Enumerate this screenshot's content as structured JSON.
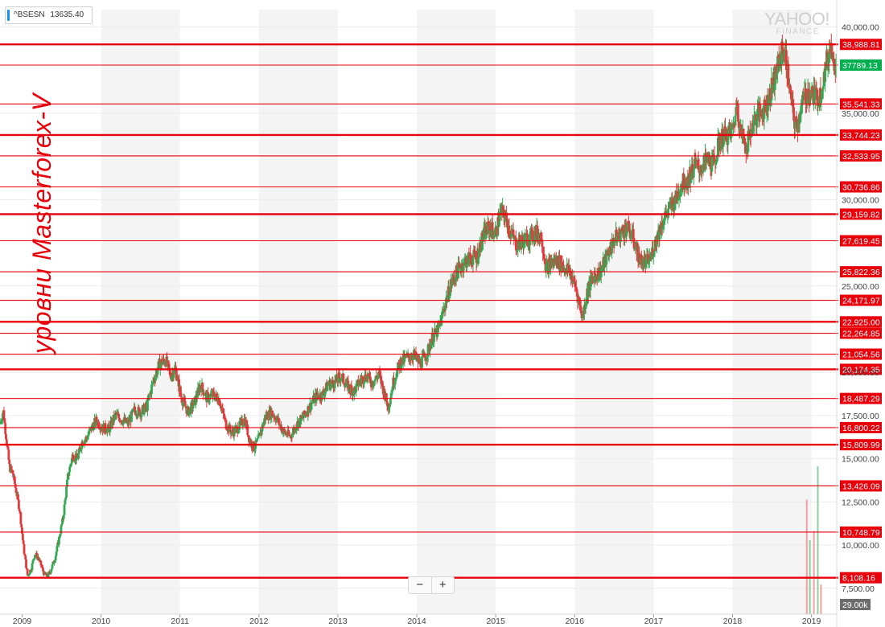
{
  "ticker": {
    "symbol": "^BSESN",
    "value": "13635.40",
    "accent": "#188fff"
  },
  "brand": {
    "name": "YAHOO!",
    "sub": "FINANCE"
  },
  "watermark": {
    "text": "уровни Masterforex-V",
    "color": "#e8000b"
  },
  "zoom": {
    "minus": "−",
    "plus": "+"
  },
  "chart_data": {
    "type": "candlestick",
    "title": "",
    "xlabel": "",
    "ylabel": "",
    "ylim": [
      6000,
      41000
    ],
    "xlim": [
      2008.72,
      2019.32
    ],
    "grid": true,
    "year_bands": true,
    "x_ticks": [
      "2009",
      "2010",
      "2011",
      "2012",
      "2013",
      "2014",
      "2015",
      "2016",
      "2017",
      "2018",
      "2019"
    ],
    "y_ticks": [
      {
        "value": 40000,
        "label": "40,000.00"
      },
      {
        "value": 35000,
        "label": "35,000.00"
      },
      {
        "value": 30000,
        "label": "30,000.00"
      },
      {
        "value": 25000,
        "label": "25,000.00"
      },
      {
        "value": 20000,
        "label": "20,000.00"
      },
      {
        "value": 17500,
        "label": "17,500.00"
      },
      {
        "value": 15000,
        "label": "15,000.00"
      },
      {
        "value": 12500,
        "label": "12,500.00"
      },
      {
        "value": 10000,
        "label": "10,000.00"
      },
      {
        "value": 7500,
        "label": "7,500.00"
      }
    ],
    "price_path": [
      [
        2008.72,
        17000
      ],
      [
        2008.76,
        17800
      ],
      [
        2008.8,
        16200
      ],
      [
        2008.84,
        14500
      ],
      [
        2008.88,
        14200
      ],
      [
        2008.93,
        13000
      ],
      [
        2008.97,
        12000
      ],
      [
        2009.02,
        9800
      ],
      [
        2009.07,
        8200
      ],
      [
        2009.12,
        8700
      ],
      [
        2009.16,
        9500
      ],
      [
        2009.2,
        9300
      ],
      [
        2009.25,
        8700
      ],
      [
        2009.28,
        8300
      ],
      [
        2009.32,
        8200
      ],
      [
        2009.36,
        8500
      ],
      [
        2009.42,
        9300
      ],
      [
        2009.46,
        10200
      ],
      [
        2009.52,
        11600
      ],
      [
        2009.58,
        14000
      ],
      [
        2009.64,
        15200
      ],
      [
        2009.7,
        15000
      ],
      [
        2009.76,
        16000
      ],
      [
        2009.82,
        16200
      ],
      [
        2009.88,
        16800
      ],
      [
        2009.94,
        17200
      ],
      [
        2010.02,
        16800
      ],
      [
        2010.1,
        16700
      ],
      [
        2010.18,
        17500
      ],
      [
        2010.26,
        17300
      ],
      [
        2010.34,
        17000
      ],
      [
        2010.42,
        17800
      ],
      [
        2010.5,
        17700
      ],
      [
        2010.58,
        18000
      ],
      [
        2010.66,
        19500
      ],
      [
        2010.74,
        20500
      ],
      [
        2010.82,
        20700
      ],
      [
        2010.88,
        19800
      ],
      [
        2010.94,
        20200
      ],
      [
        2011.02,
        18500
      ],
      [
        2011.1,
        17700
      ],
      [
        2011.18,
        18200
      ],
      [
        2011.26,
        19300
      ],
      [
        2011.34,
        18500
      ],
      [
        2011.42,
        18700
      ],
      [
        2011.5,
        18400
      ],
      [
        2011.58,
        17000
      ],
      [
        2011.66,
        16500
      ],
      [
        2011.74,
        16800
      ],
      [
        2011.82,
        17300
      ],
      [
        2011.88,
        16100
      ],
      [
        2011.94,
        15600
      ],
      [
        2012.0,
        16200
      ],
      [
        2012.08,
        17400
      ],
      [
        2012.16,
        17700
      ],
      [
        2012.24,
        17200
      ],
      [
        2012.32,
        16500
      ],
      [
        2012.4,
        16300
      ],
      [
        2012.48,
        17000
      ],
      [
        2012.56,
        17400
      ],
      [
        2012.64,
        18000
      ],
      [
        2012.72,
        18600
      ],
      [
        2012.8,
        18700
      ],
      [
        2012.88,
        19300
      ],
      [
        2012.96,
        19400
      ],
      [
        2013.04,
        19800
      ],
      [
        2013.12,
        19200
      ],
      [
        2013.2,
        18900
      ],
      [
        2013.28,
        19500
      ],
      [
        2013.36,
        19800
      ],
      [
        2013.44,
        19400
      ],
      [
        2013.52,
        19900
      ],
      [
        2013.6,
        18600
      ],
      [
        2013.64,
        18000
      ],
      [
        2013.7,
        19400
      ],
      [
        2013.78,
        20500
      ],
      [
        2013.86,
        20800
      ],
      [
        2013.96,
        21000
      ],
      [
        2014.04,
        20500
      ],
      [
        2014.12,
        21000
      ],
      [
        2014.2,
        22000
      ],
      [
        2014.28,
        22500
      ],
      [
        2014.36,
        24000
      ],
      [
        2014.44,
        25200
      ],
      [
        2014.52,
        25900
      ],
      [
        2014.6,
        26400
      ],
      [
        2014.68,
        26600
      ],
      [
        2014.76,
        26700
      ],
      [
        2014.84,
        27900
      ],
      [
        2014.92,
        28400
      ],
      [
        2015.0,
        28000
      ],
      [
        2015.06,
        29300
      ],
      [
        2015.12,
        29000
      ],
      [
        2015.18,
        28200
      ],
      [
        2015.26,
        27400
      ],
      [
        2015.34,
        27600
      ],
      [
        2015.42,
        27800
      ],
      [
        2015.5,
        28100
      ],
      [
        2015.58,
        27900
      ],
      [
        2015.64,
        26000
      ],
      [
        2015.7,
        26300
      ],
      [
        2015.78,
        26500
      ],
      [
        2015.86,
        26100
      ],
      [
        2015.94,
        25800
      ],
      [
        2016.02,
        24800
      ],
      [
        2016.1,
        23200
      ],
      [
        2016.16,
        24700
      ],
      [
        2016.24,
        25600
      ],
      [
        2016.32,
        25800
      ],
      [
        2016.4,
        26600
      ],
      [
        2016.5,
        27700
      ],
      [
        2016.58,
        28000
      ],
      [
        2016.66,
        28400
      ],
      [
        2016.74,
        27800
      ],
      [
        2016.82,
        26500
      ],
      [
        2016.9,
        26300
      ],
      [
        2016.96,
        26600
      ],
      [
        2017.04,
        27800
      ],
      [
        2017.12,
        28800
      ],
      [
        2017.2,
        29500
      ],
      [
        2017.28,
        30000
      ],
      [
        2017.36,
        31000
      ],
      [
        2017.44,
        31200
      ],
      [
        2017.52,
        32000
      ],
      [
        2017.6,
        31800
      ],
      [
        2017.68,
        32300
      ],
      [
        2017.76,
        32000
      ],
      [
        2017.84,
        33500
      ],
      [
        2017.92,
        33700
      ],
      [
        2018.0,
        34000
      ],
      [
        2018.06,
        35500
      ],
      [
        2018.1,
        34000
      ],
      [
        2018.18,
        33100
      ],
      [
        2018.26,
        34500
      ],
      [
        2018.34,
        35000
      ],
      [
        2018.42,
        35400
      ],
      [
        2018.5,
        36500
      ],
      [
        2018.58,
        37800
      ],
      [
        2018.64,
        38800
      ],
      [
        2018.68,
        38000
      ],
      [
        2018.72,
        36500
      ],
      [
        2018.78,
        34500
      ],
      [
        2018.82,
        34200
      ],
      [
        2018.86,
        35200
      ],
      [
        2018.92,
        36000
      ],
      [
        2018.98,
        36200
      ],
      [
        2019.04,
        36000
      ],
      [
        2019.1,
        35900
      ],
      [
        2019.16,
        37200
      ],
      [
        2019.22,
        38500
      ],
      [
        2019.26,
        39000
      ],
      [
        2019.3,
        37789
      ]
    ],
    "levels": [
      {
        "value": 38988.81,
        "label": "38,988.81",
        "bold": true
      },
      {
        "value": 37789.13,
        "label": "37789.13",
        "bold": false,
        "current": true
      },
      {
        "value": 35541.33,
        "label": "35,541.33",
        "bold": false
      },
      {
        "value": 33744.23,
        "label": "33,744.23",
        "bold": true
      },
      {
        "value": 32533.95,
        "label": "32,533.95",
        "bold": false
      },
      {
        "value": 30736.86,
        "label": "30,736.86",
        "bold": false
      },
      {
        "value": 29159.82,
        "label": "29,159.82",
        "bold": true
      },
      {
        "value": 27619.45,
        "label": "27,619.45",
        "bold": false
      },
      {
        "value": 25822.36,
        "label": "25,822.36",
        "bold": false
      },
      {
        "value": 24171.97,
        "label": "24,171.97",
        "bold": false
      },
      {
        "value": 22925.0,
        "label": "22,925.00",
        "bold": true
      },
      {
        "value": 22264.85,
        "label": "22,264.85",
        "bold": false
      },
      {
        "value": 21054.56,
        "label": "21,054.56",
        "bold": false
      },
      {
        "value": 20174.35,
        "label": "20,174.35",
        "bold": true
      },
      {
        "value": 18487.29,
        "label": "18,487.29",
        "bold": false
      },
      {
        "value": 16800.22,
        "label": "16,800.22",
        "bold": false
      },
      {
        "value": 15809.99,
        "label": "15,809.99",
        "bold": true
      },
      {
        "value": 13426.09,
        "label": "13,426.09",
        "bold": false
      },
      {
        "value": 10748.79,
        "label": "10,748.79",
        "bold": false
      },
      {
        "value": 8108.16,
        "label": "8,108.16",
        "bold": true
      }
    ],
    "volume_label": "29.00k",
    "volume_bars": [
      {
        "x": 2018.93,
        "level": 0.62
      },
      {
        "x": 2018.97,
        "level": 0.4
      },
      {
        "x": 2019.02,
        "level": 0.45
      },
      {
        "x": 2019.07,
        "level": 0.8
      },
      {
        "x": 2019.11,
        "level": 0.16
      }
    ],
    "colors": {
      "up": "#34a853",
      "down": "#e5393d",
      "level": "#e8000b",
      "current": "#00b050",
      "band": "#f4f4f4",
      "axis_text": "#444444",
      "volume_up": "#8fd0a0",
      "volume_down": "#f0a0a0",
      "volume_label_bg": "#6c6c6c"
    }
  }
}
